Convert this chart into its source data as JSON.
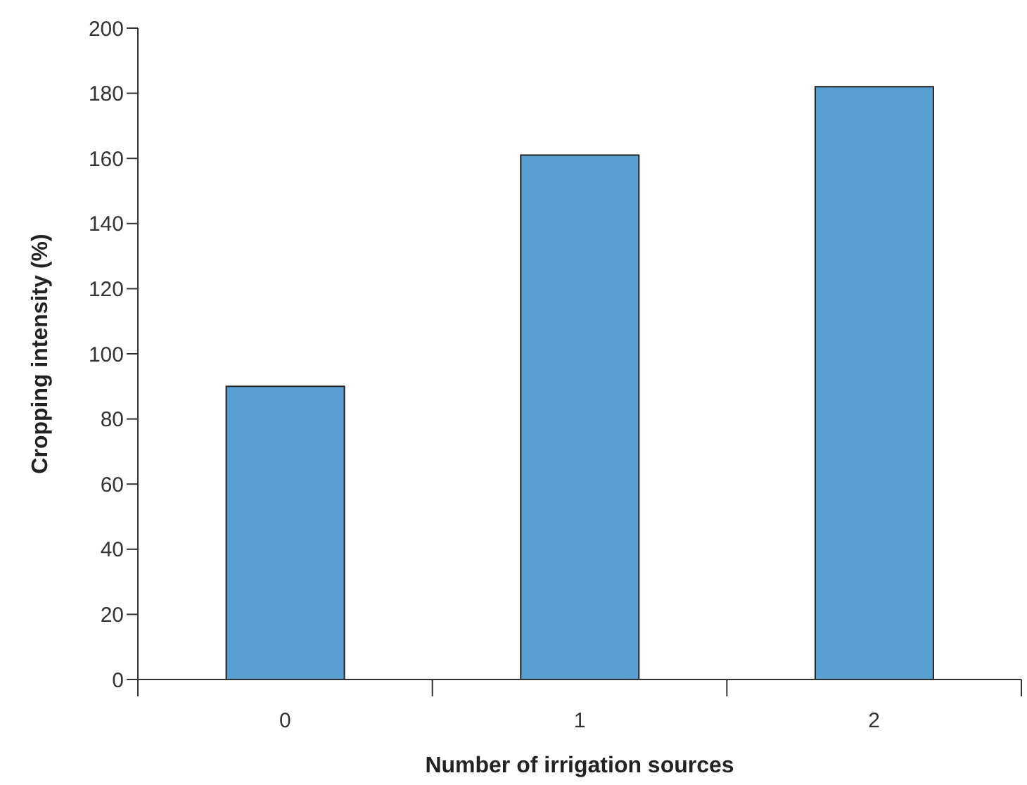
{
  "chart_data": {
    "type": "bar",
    "xlabel": "Number of irrigation sources",
    "ylabel": "Cropping intensity (%)",
    "categories": [
      "0",
      "1",
      "2"
    ],
    "values": [
      90,
      161,
      182
    ],
    "color": "#589fd2",
    "ylim": [
      0,
      200
    ],
    "yticks": [
      0,
      20,
      40,
      60,
      80,
      100,
      120,
      140,
      160,
      180,
      200
    ],
    "grid": false
  }
}
